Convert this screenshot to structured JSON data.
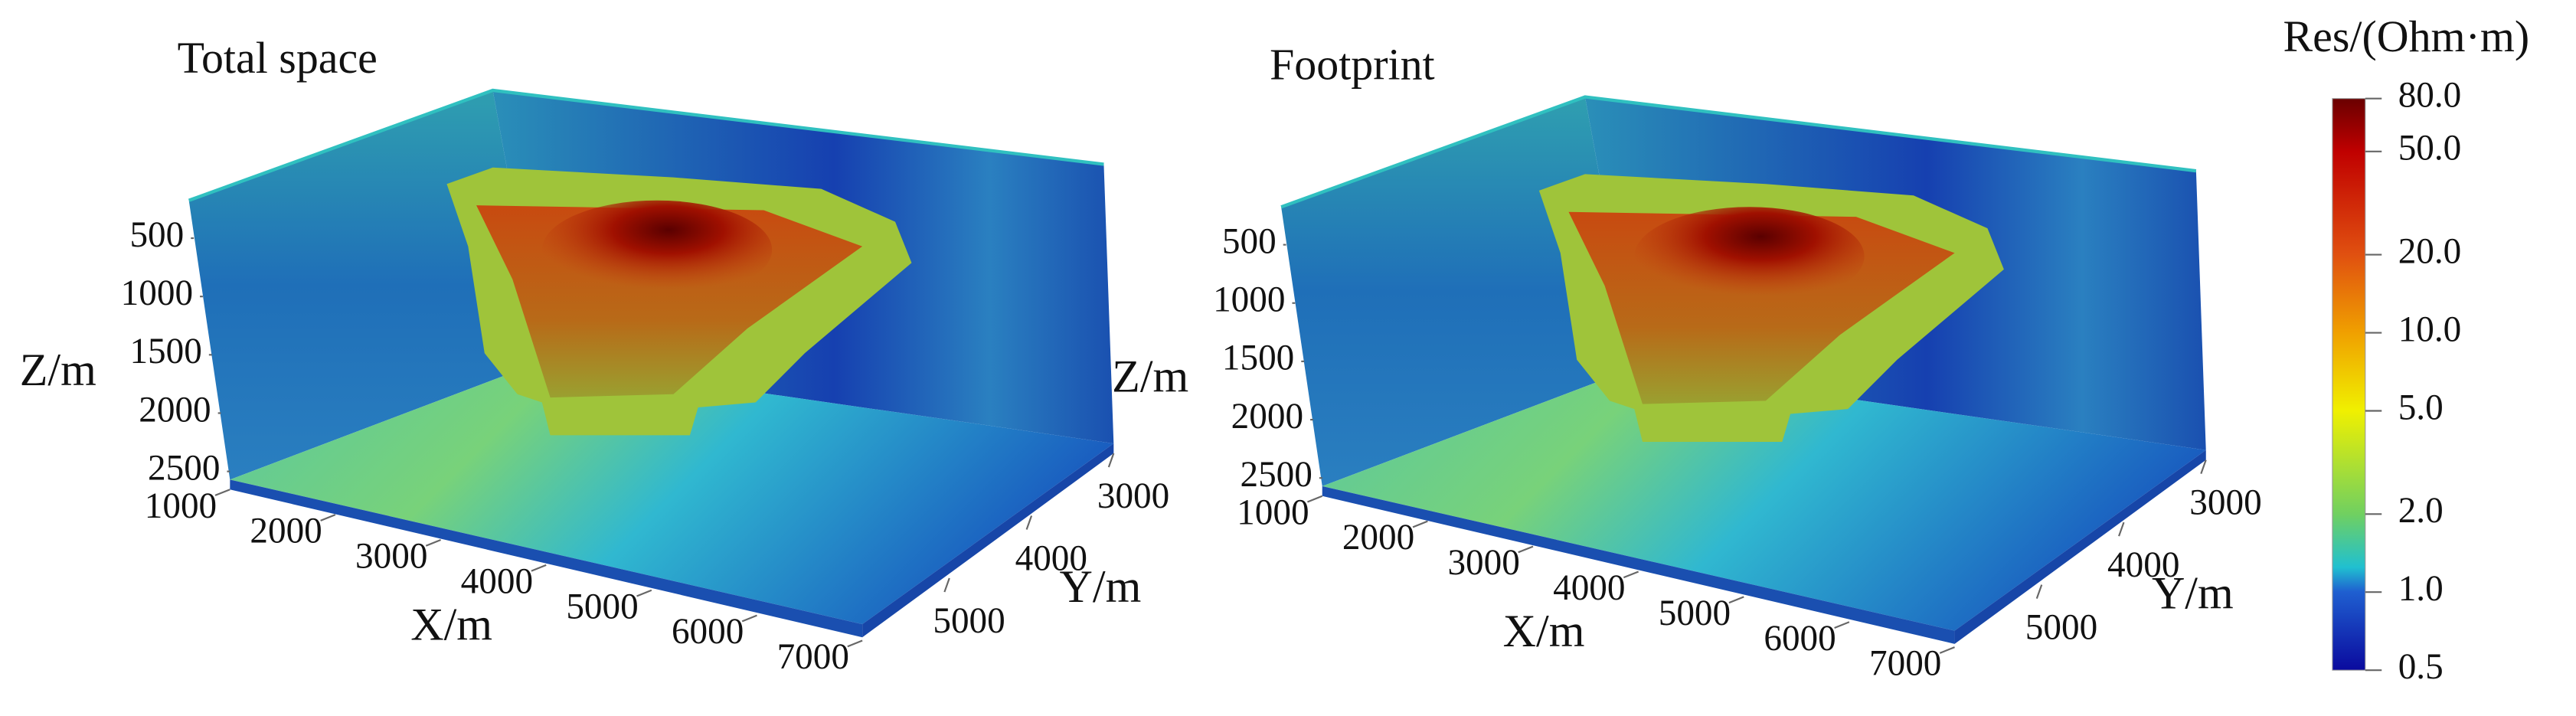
{
  "panels": [
    {
      "title": "Total space",
      "z_label": "Z/m",
      "x_label": "X/m",
      "y_label": "Y/m",
      "z_ticks": [
        500,
        1000,
        1500,
        2000,
        2500
      ],
      "x_ticks": [
        1000,
        2000,
        3000,
        4000,
        5000,
        6000,
        7000
      ],
      "y_ticks": [
        3000,
        4000,
        5000
      ]
    },
    {
      "title": "Footprint",
      "z_label": "Z/m",
      "x_label": "X/m",
      "y_label": "Y/m",
      "z_ticks": [
        500,
        1000,
        1500,
        2000,
        2500
      ],
      "x_ticks": [
        1000,
        2000,
        3000,
        4000,
        5000,
        6000,
        7000
      ],
      "y_ticks": [
        3000,
        4000,
        5000
      ]
    }
  ],
  "colorbar": {
    "title": "Res/(Ohm·m)",
    "scale": "log",
    "lim": [
      0.5,
      80
    ],
    "ticks": [
      {
        "value": 80,
        "label": "80.0"
      },
      {
        "value": 50,
        "label": "50.0"
      },
      {
        "value": 20,
        "label": "20.0"
      },
      {
        "value": 10,
        "label": "10.0"
      },
      {
        "value": 5,
        "label": "5.0"
      },
      {
        "value": 2,
        "label": "2.0"
      },
      {
        "value": 1,
        "label": "1.0"
      },
      {
        "value": 0.5,
        "label": "0.5"
      }
    ]
  }
}
